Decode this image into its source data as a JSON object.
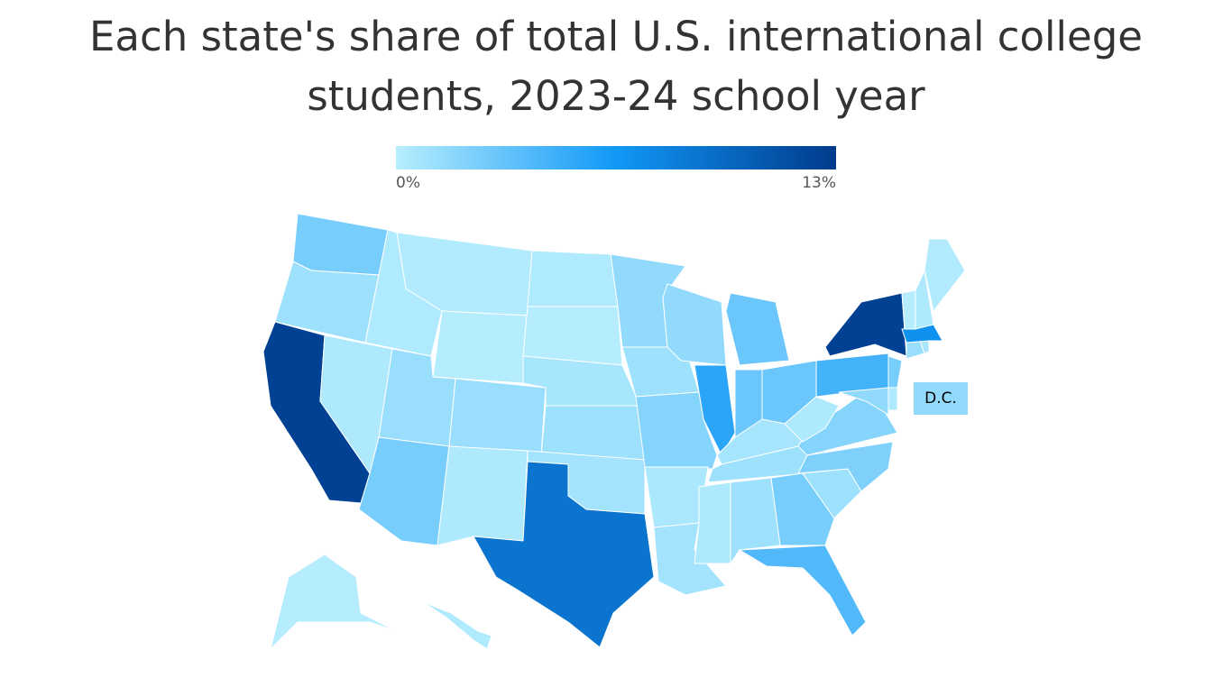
{
  "chart_data": {
    "type": "choropleth",
    "title": "Each state's share of total U.S. international college students, 2023-24 school year",
    "colorbar": {
      "lim": [
        0,
        13
      ],
      "ticks": [
        {
          "value": 0,
          "label": "0%"
        },
        {
          "value": 13,
          "label": "13%"
        }
      ],
      "colors": [
        "#b8eefe",
        "#1098f7",
        "#003a8c"
      ]
    },
    "values": [
      2.5,
      1,
      12.5,
      0.4,
      0.3,
      0.2,
      0.1,
      1.2,
      2.5,
      1.2,
      0.4,
      0.3,
      0.1,
      0.6,
      1,
      0.8,
      9,
      1.5,
      1,
      2,
      0.5,
      0.8,
      1.5,
      5.5,
      3,
      3,
      3,
      0.7,
      1,
      0.4,
      1,
      2.5,
      4,
      1,
      2.2,
      2,
      0.4,
      4.5,
      12.5,
      1.5,
      0.4,
      2.5,
      1.2,
      0.6,
      7,
      0.1,
      0.4,
      0.2,
      0.1,
      0.3,
      1.5
    ],
    "annotation": "D.C."
  }
}
